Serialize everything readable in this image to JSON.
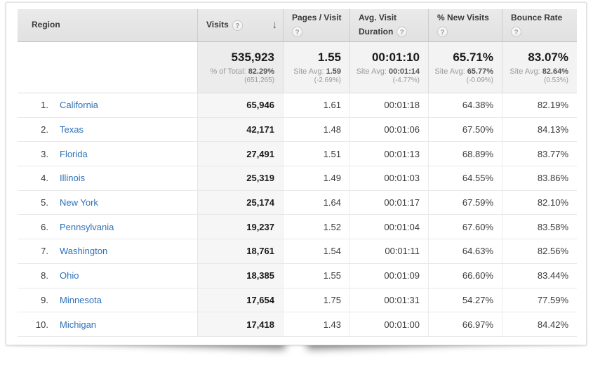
{
  "colors": {
    "link_blue": "#2f72b8",
    "header_bg": "#e5e5e5",
    "summary_bg": "#f3f3f3",
    "sorted_column_bg": "#f6f6f6"
  },
  "table": {
    "sorted_column": "Visits",
    "sort_direction": "descending",
    "sort_arrow_glyph": "↓",
    "help_glyph": "?",
    "columns": {
      "region": {
        "label": "Region"
      },
      "visits": {
        "label": "Visits"
      },
      "pages_per_visit": {
        "label": "Pages / Visit"
      },
      "avg_visit_duration": {
        "label_line1": "Avg. Visit",
        "label_line2": "Duration"
      },
      "pct_new_visits": {
        "label": "% New Visits"
      },
      "bounce_rate": {
        "label": "Bounce Rate"
      }
    },
    "summary": {
      "visits": {
        "value": "535,923",
        "sub_label": "% of Total:",
        "sub_value": "82.29%",
        "sub_paren": "(651,265)"
      },
      "pages_per_visit": {
        "value": "1.55",
        "sub_label": "Site Avg:",
        "sub_value": "1.59",
        "sub_paren": "(-2.69%)"
      },
      "avg_visit_duration": {
        "value": "00:01:10",
        "sub_label": "Site Avg:",
        "sub_value": "00:01:14",
        "sub_paren": "(-4.77%)"
      },
      "pct_new_visits": {
        "value": "65.71%",
        "sub_label": "Site Avg:",
        "sub_value": "65.77%",
        "sub_paren": "(-0.09%)"
      },
      "bounce_rate": {
        "value": "83.07%",
        "sub_label": "Site Avg:",
        "sub_value": "82.64%",
        "sub_paren": "(0.53%)"
      }
    },
    "rows": [
      {
        "rank": "1.",
        "region": "California",
        "visits": "65,946",
        "pages_per_visit": "1.61",
        "avg_visit_duration": "00:01:18",
        "pct_new_visits": "64.38%",
        "bounce_rate": "82.19%"
      },
      {
        "rank": "2.",
        "region": "Texas",
        "visits": "42,171",
        "pages_per_visit": "1.48",
        "avg_visit_duration": "00:01:06",
        "pct_new_visits": "67.50%",
        "bounce_rate": "84.13%"
      },
      {
        "rank": "3.",
        "region": "Florida",
        "visits": "27,491",
        "pages_per_visit": "1.51",
        "avg_visit_duration": "00:01:13",
        "pct_new_visits": "68.89%",
        "bounce_rate": "83.77%"
      },
      {
        "rank": "4.",
        "region": "Illinois",
        "visits": "25,319",
        "pages_per_visit": "1.49",
        "avg_visit_duration": "00:01:03",
        "pct_new_visits": "64.55%",
        "bounce_rate": "83.86%"
      },
      {
        "rank": "5.",
        "region": "New York",
        "visits": "25,174",
        "pages_per_visit": "1.64",
        "avg_visit_duration": "00:01:17",
        "pct_new_visits": "67.59%",
        "bounce_rate": "82.10%"
      },
      {
        "rank": "6.",
        "region": "Pennsylvania",
        "visits": "19,237",
        "pages_per_visit": "1.52",
        "avg_visit_duration": "00:01:04",
        "pct_new_visits": "67.60%",
        "bounce_rate": "83.58%"
      },
      {
        "rank": "7.",
        "region": "Washington",
        "visits": "18,761",
        "pages_per_visit": "1.54",
        "avg_visit_duration": "00:01:11",
        "pct_new_visits": "64.63%",
        "bounce_rate": "82.56%"
      },
      {
        "rank": "8.",
        "region": "Ohio",
        "visits": "18,385",
        "pages_per_visit": "1.55",
        "avg_visit_duration": "00:01:09",
        "pct_new_visits": "66.60%",
        "bounce_rate": "83.44%"
      },
      {
        "rank": "9.",
        "region": "Minnesota",
        "visits": "17,654",
        "pages_per_visit": "1.75",
        "avg_visit_duration": "00:01:31",
        "pct_new_visits": "54.27%",
        "bounce_rate": "77.59%"
      },
      {
        "rank": "10.",
        "region": "Michigan",
        "visits": "17,418",
        "pages_per_visit": "1.43",
        "avg_visit_duration": "00:01:00",
        "pct_new_visits": "66.97%",
        "bounce_rate": "84.42%"
      }
    ]
  }
}
